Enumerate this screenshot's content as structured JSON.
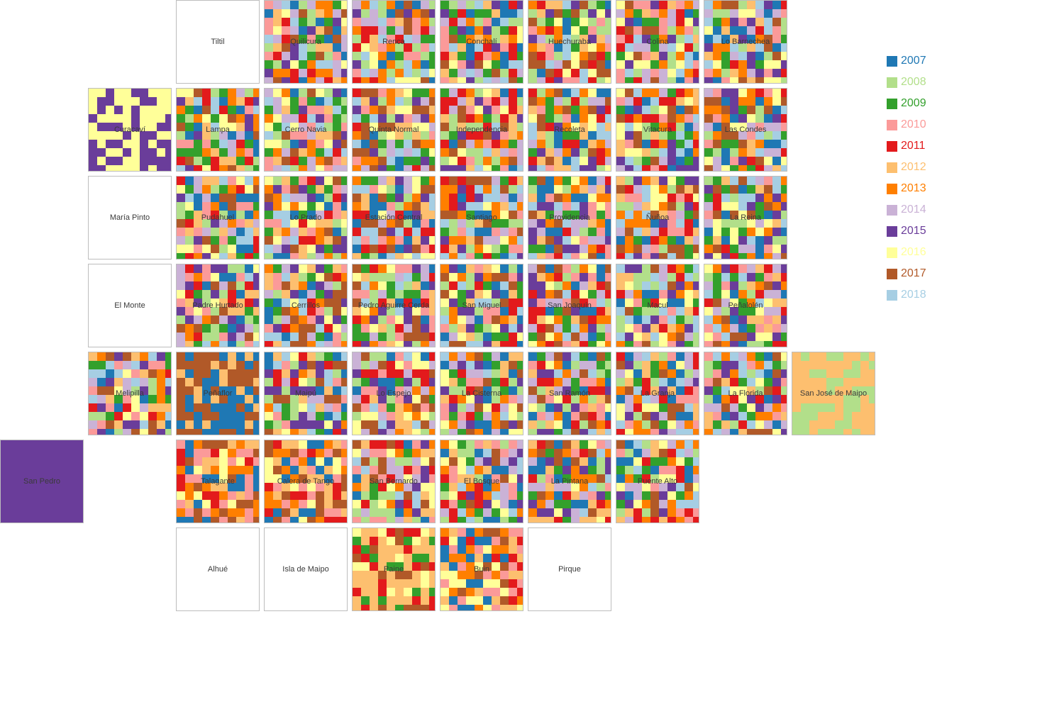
{
  "chart_data": {
    "type": "tile-grid map (per-commune year mosaic)",
    "legend": [
      {
        "year": "2007",
        "color": "#1f78b4"
      },
      {
        "year": "2008",
        "color": "#b2df8a"
      },
      {
        "year": "2009",
        "color": "#33a02c"
      },
      {
        "year": "2010",
        "color": "#fb9a99"
      },
      {
        "year": "2011",
        "color": "#e31a1c"
      },
      {
        "year": "2012",
        "color": "#fdbf6f"
      },
      {
        "year": "2013",
        "color": "#ff7f00"
      },
      {
        "year": "2014",
        "color": "#cab2d6"
      },
      {
        "year": "2015",
        "color": "#6a3d9a"
      },
      {
        "year": "2016",
        "color": "#ffff99"
      },
      {
        "year": "2017",
        "color": "#b15928"
      },
      {
        "year": "2018",
        "color": "#a6cee3"
      }
    ],
    "communes": [
      {
        "name": "Tiltil",
        "row": 0,
        "col": 2,
        "mix": null
      },
      {
        "name": "Quilicura",
        "row": 0,
        "col": 3,
        "mix": "all"
      },
      {
        "name": "Renca",
        "row": 0,
        "col": 4,
        "mix": "all"
      },
      {
        "name": "Conchalí",
        "row": 0,
        "col": 5,
        "mix": "all"
      },
      {
        "name": "Huechuraba",
        "row": 0,
        "col": 6,
        "mix": "all"
      },
      {
        "name": "Colina",
        "row": 0,
        "col": 7,
        "mix": "all"
      },
      {
        "name": "Lo Barnechea",
        "row": 0,
        "col": 8,
        "mix": "all"
      },
      {
        "name": "Curacaví",
        "row": 1,
        "col": 1,
        "mix": "purple-yellow"
      },
      {
        "name": "Lampa",
        "row": 1,
        "col": 2,
        "mix": "all"
      },
      {
        "name": "Cerro Navia",
        "row": 1,
        "col": 3,
        "mix": "all"
      },
      {
        "name": "Quinta Normal",
        "row": 1,
        "col": 4,
        "mix": "all"
      },
      {
        "name": "Independencia",
        "row": 1,
        "col": 5,
        "mix": "all"
      },
      {
        "name": "Recoleta",
        "row": 1,
        "col": 6,
        "mix": "all"
      },
      {
        "name": "Vitacura",
        "row": 1,
        "col": 7,
        "mix": "all"
      },
      {
        "name": "Las Condes",
        "row": 1,
        "col": 8,
        "mix": "all"
      },
      {
        "name": "María Pinto",
        "row": 2,
        "col": 1,
        "mix": null
      },
      {
        "name": "Pudahuel",
        "row": 2,
        "col": 2,
        "mix": "all"
      },
      {
        "name": "Lo Prado",
        "row": 2,
        "col": 3,
        "mix": "all"
      },
      {
        "name": "Estación Central",
        "row": 2,
        "col": 4,
        "mix": "all"
      },
      {
        "name": "Santiago",
        "row": 2,
        "col": 5,
        "mix": "all"
      },
      {
        "name": "Providencia",
        "row": 2,
        "col": 6,
        "mix": "all"
      },
      {
        "name": "Ñuñoa",
        "row": 2,
        "col": 7,
        "mix": "all"
      },
      {
        "name": "La Reina",
        "row": 2,
        "col": 8,
        "mix": "all"
      },
      {
        "name": "El Monte",
        "row": 3,
        "col": 1,
        "mix": null
      },
      {
        "name": "Padre Hurtado",
        "row": 3,
        "col": 2,
        "mix": "all"
      },
      {
        "name": "Cerrillos",
        "row": 3,
        "col": 3,
        "mix": "all"
      },
      {
        "name": "Pedro Aguirre Cerda",
        "row": 3,
        "col": 4,
        "mix": "all"
      },
      {
        "name": "San Miguel",
        "row": 3,
        "col": 5,
        "mix": "all"
      },
      {
        "name": "San Joaquín",
        "row": 3,
        "col": 6,
        "mix": "all"
      },
      {
        "name": "Macul",
        "row": 3,
        "col": 7,
        "mix": "all"
      },
      {
        "name": "Peñalolén",
        "row": 3,
        "col": 8,
        "mix": "all"
      },
      {
        "name": "Melipilla",
        "row": 4,
        "col": 1,
        "mix": "all"
      },
      {
        "name": "Peñaflor",
        "row": 4,
        "col": 2,
        "mix": "blue-brown"
      },
      {
        "name": "Maipú",
        "row": 4,
        "col": 3,
        "mix": "all"
      },
      {
        "name": "Lo Espejo",
        "row": 4,
        "col": 4,
        "mix": "all"
      },
      {
        "name": "La Cisterna",
        "row": 4,
        "col": 5,
        "mix": "all"
      },
      {
        "name": "San Ramón",
        "row": 4,
        "col": 6,
        "mix": "all"
      },
      {
        "name": "La Granja",
        "row": 4,
        "col": 7,
        "mix": "all"
      },
      {
        "name": "La Florida",
        "row": 4,
        "col": 8,
        "mix": "all"
      },
      {
        "name": "San José de Maipo",
        "row": 4,
        "col": 9,
        "mix": "green-peach"
      },
      {
        "name": "San Pedro",
        "row": 5,
        "col": 0,
        "mix": "solid-purple"
      },
      {
        "name": "Talagante",
        "row": 5,
        "col": 2,
        "mix": "warm"
      },
      {
        "name": "Calera de Tango",
        "row": 5,
        "col": 3,
        "mix": "warm"
      },
      {
        "name": "San Bernardo",
        "row": 5,
        "col": 4,
        "mix": "all"
      },
      {
        "name": "El Bosque",
        "row": 5,
        "col": 5,
        "mix": "all"
      },
      {
        "name": "La Pintana",
        "row": 5,
        "col": 6,
        "mix": "all"
      },
      {
        "name": "Puente Alto",
        "row": 5,
        "col": 7,
        "mix": "all"
      },
      {
        "name": "Alhué",
        "row": 6,
        "col": 2,
        "mix": null
      },
      {
        "name": "Isla de Maipo",
        "row": 6,
        "col": 3,
        "mix": null
      },
      {
        "name": "Paine",
        "row": 6,
        "col": 4,
        "mix": "peach"
      },
      {
        "name": "Buin",
        "row": 6,
        "col": 5,
        "mix": "warm"
      },
      {
        "name": "Pirque",
        "row": 6,
        "col": 6,
        "mix": null
      }
    ]
  }
}
